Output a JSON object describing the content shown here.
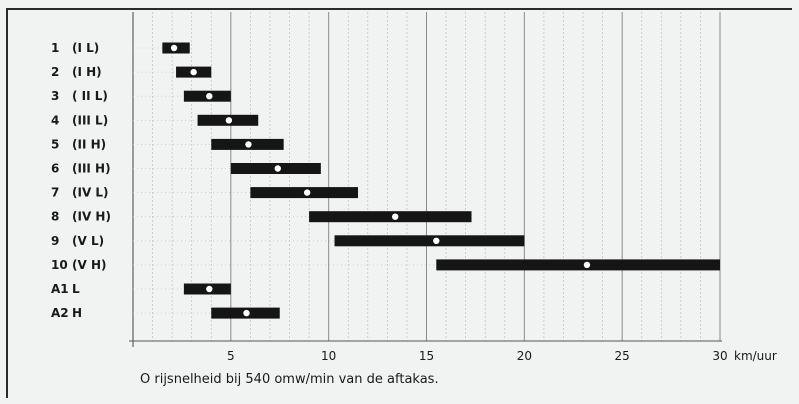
{
  "chart_data": {
    "type": "range-bar",
    "rows": [
      {
        "num": "1",
        "code": "(I L)",
        "low": 1.5,
        "high": 2.9,
        "mid": 2.1
      },
      {
        "num": "2",
        "code": "(I H)",
        "low": 2.2,
        "high": 4.0,
        "mid": 3.1
      },
      {
        "num": "3",
        "code": "( II L)",
        "low": 2.6,
        "high": 5.0,
        "mid": 3.9
      },
      {
        "num": "4",
        "code": "(III L)",
        "low": 3.3,
        "high": 6.4,
        "mid": 4.9
      },
      {
        "num": "5",
        "code": "(II H)",
        "low": 4.0,
        "high": 7.7,
        "mid": 5.9
      },
      {
        "num": "6",
        "code": "(III H)",
        "low": 5.0,
        "high": 9.6,
        "mid": 7.4
      },
      {
        "num": "7",
        "code": "(IV L)",
        "low": 6.0,
        "high": 11.5,
        "mid": 8.9
      },
      {
        "num": "8",
        "code": "(IV H)",
        "low": 9.0,
        "high": 17.3,
        "mid": 13.4
      },
      {
        "num": "9",
        "code": "(V L)",
        "low": 10.3,
        "high": 20.0,
        "mid": 15.5
      },
      {
        "num": "10",
        "code": "(V H)",
        "low": 15.5,
        "high": 30.0,
        "mid": 23.2
      },
      {
        "num": "A1",
        "code": "L",
        "low": 2.6,
        "high": 5.0,
        "mid": 3.9
      },
      {
        "num": "A2",
        "code": "H",
        "low": 4.0,
        "high": 7.5,
        "mid": 5.8
      }
    ],
    "xlim": [
      0,
      30
    ],
    "xticks": [
      "5",
      "10",
      "15",
      "20",
      "25",
      "30"
    ],
    "xunit": "km/uur",
    "minor_grid_step": 1,
    "bar_color": "#151515",
    "marker_color": "#ffffff"
  },
  "caption": "O     rijsnelheid bij 540 omw/min van de aftakas."
}
